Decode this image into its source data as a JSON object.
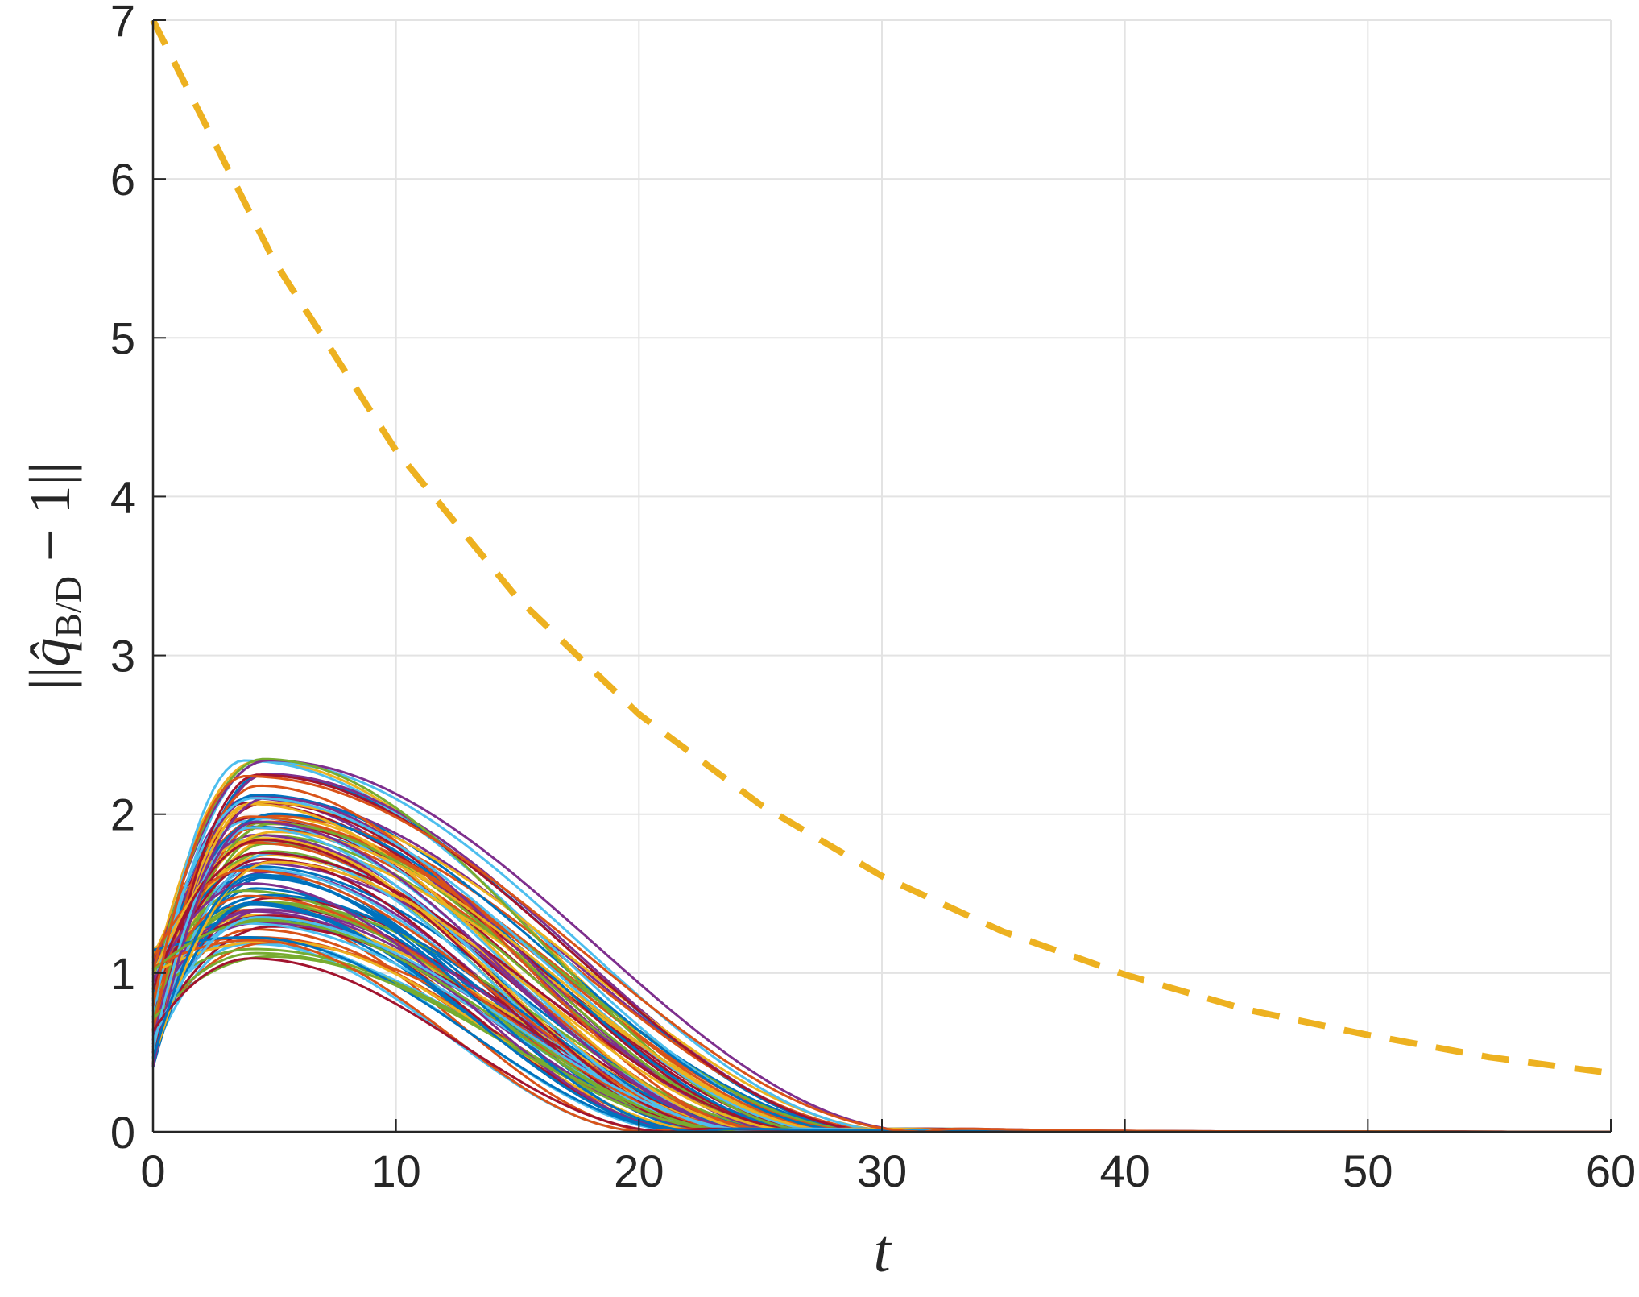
{
  "chart_data": {
    "type": "line",
    "xlabel": "t",
    "ylabel": {
      "prefix": "||",
      "q": "q̂",
      "subscript": "B/D",
      "suffix": " − 1||"
    },
    "xlim": [
      0,
      60
    ],
    "ylim": [
      0,
      7
    ],
    "x_ticks": [
      "0",
      "10",
      "20",
      "30",
      "40",
      "50",
      "60"
    ],
    "y_ticks": [
      "0",
      "1",
      "2",
      "3",
      "4",
      "5",
      "6",
      "7"
    ],
    "grid": true,
    "bound": {
      "style": "dashed",
      "color": "#EDB120",
      "x": [
        0,
        5,
        10,
        15,
        20,
        25,
        30,
        35,
        40,
        45,
        50,
        55,
        60
      ],
      "y": [
        7.0,
        5.48,
        4.29,
        3.36,
        2.63,
        2.06,
        1.61,
        1.26,
        0.99,
        0.77,
        0.61,
        0.47,
        0.37
      ]
    },
    "trajectories": {
      "count": 100,
      "peak_range": [
        1.07,
        2.37
      ],
      "peak_time_range": [
        3.7,
        5.0
      ],
      "initial_range": [
        0.4,
        1.15
      ],
      "settle_time_range": [
        19,
        33
      ],
      "colors": [
        "#0072BD",
        "#D95319",
        "#EDB120",
        "#7E2F8E",
        "#77AC30",
        "#4DBEEE",
        "#A2142F"
      ]
    }
  }
}
